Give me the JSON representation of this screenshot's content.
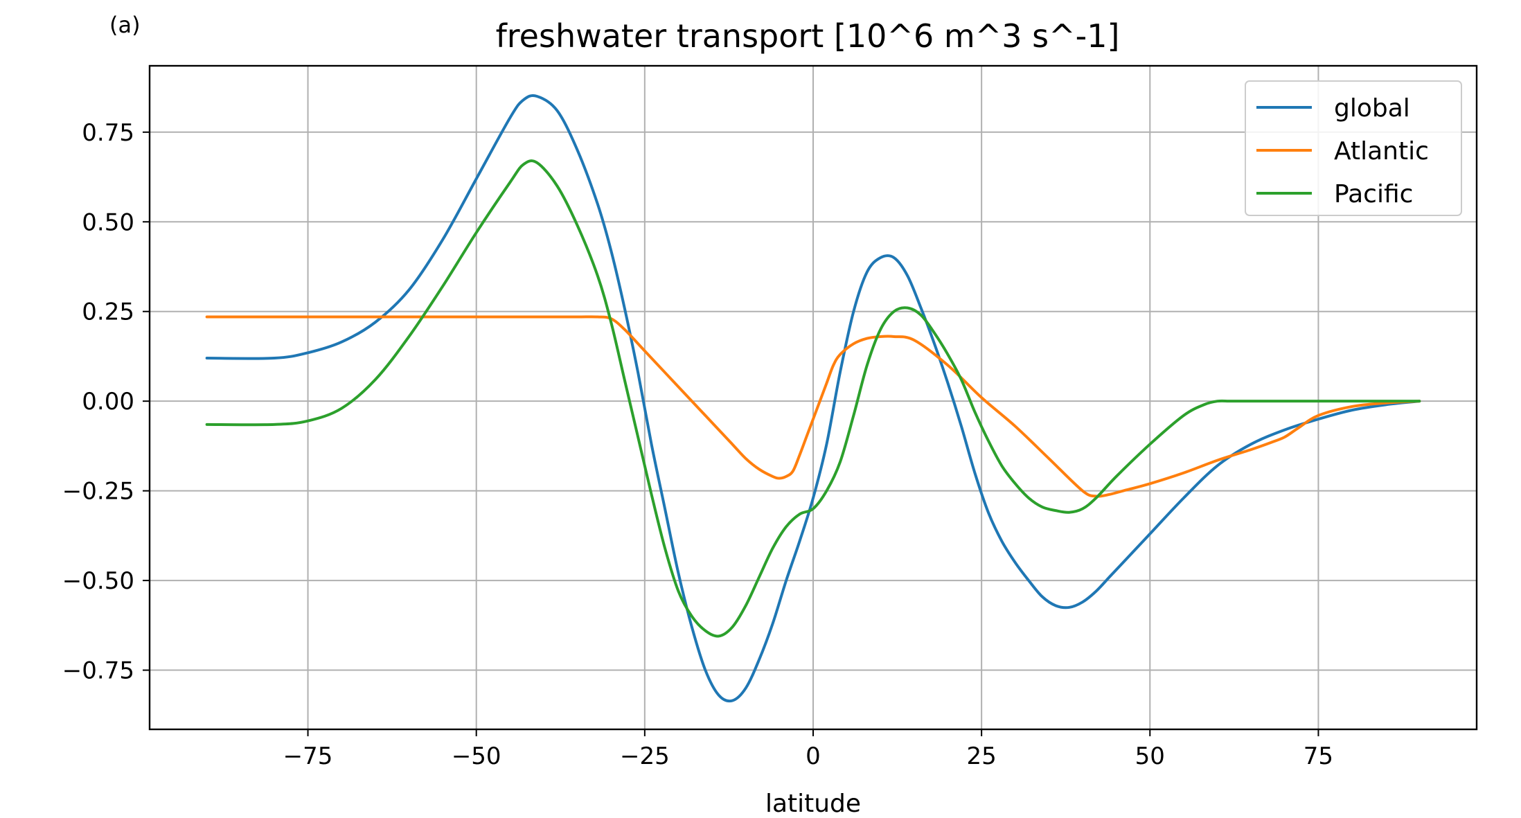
{
  "panel_label": "(a)",
  "chart_data": {
    "type": "line",
    "title": "freshwater transport [10^6 m^3 s^-1]",
    "xlabel": "latitude",
    "ylabel": "",
    "xlim": [
      -98.5,
      98.5
    ],
    "ylim": [
      -0.915,
      0.935
    ],
    "xticks": [
      -75,
      -50,
      -25,
      0,
      25,
      50,
      75
    ],
    "xtick_labels": [
      "−75",
      "−50",
      "−25",
      "0",
      "25",
      "50",
      "75"
    ],
    "yticks": [
      -0.75,
      -0.5,
      -0.25,
      0,
      0.25,
      0.5,
      0.75
    ],
    "ytick_labels": [
      "−0.75",
      "−0.50",
      "−0.25",
      "0.00",
      "0.25",
      "0.50",
      "0.75"
    ],
    "grid": true,
    "legend_position": "top-right",
    "series": [
      {
        "name": "global",
        "color": "#1f77b4",
        "x": [
          -90,
          -80,
          -75,
          -70,
          -65,
          -60,
          -55,
          -50,
          -45,
          -43,
          -41,
          -38,
          -35,
          -32,
          -30,
          -28,
          -26,
          -24,
          -22,
          -20,
          -18,
          -16,
          -14,
          -12,
          -10,
          -8,
          -6,
          -4,
          -2,
          0,
          2,
          4,
          6,
          8,
          10,
          12,
          14,
          16,
          18,
          20,
          22,
          24,
          26,
          28,
          30,
          32,
          34,
          36,
          38,
          40,
          42,
          44,
          46,
          48,
          50,
          55,
          60,
          65,
          70,
          75,
          80,
          85,
          90
        ],
        "y": [
          0.12,
          0.12,
          0.135,
          0.165,
          0.22,
          0.31,
          0.45,
          0.62,
          0.79,
          0.84,
          0.85,
          0.81,
          0.7,
          0.55,
          0.42,
          0.26,
          0.08,
          -0.12,
          -0.3,
          -0.48,
          -0.63,
          -0.75,
          -0.82,
          -0.835,
          -0.8,
          -0.72,
          -0.62,
          -0.5,
          -0.39,
          -0.27,
          -0.12,
          0.08,
          0.25,
          0.36,
          0.4,
          0.4,
          0.35,
          0.26,
          0.16,
          0.05,
          -0.07,
          -0.2,
          -0.31,
          -0.39,
          -0.45,
          -0.5,
          -0.545,
          -0.57,
          -0.575,
          -0.56,
          -0.53,
          -0.49,
          -0.45,
          -0.41,
          -0.37,
          -0.27,
          -0.18,
          -0.12,
          -0.08,
          -0.05,
          -0.025,
          -0.01,
          0.0
        ]
      },
      {
        "name": "Atlantic",
        "color": "#ff7f0e",
        "x": [
          -90,
          -80,
          -70,
          -60,
          -50,
          -40,
          -35,
          -32,
          -30,
          -28,
          -25,
          -20,
          -15,
          -12,
          -10,
          -8,
          -6,
          -5,
          -4,
          -3,
          -2,
          -1,
          0,
          1,
          2,
          3,
          4,
          6,
          8,
          10,
          12,
          15,
          20,
          25,
          30,
          35,
          40,
          42,
          44,
          46,
          50,
          55,
          60,
          65,
          68,
          70,
          72,
          75,
          80,
          85,
          90
        ],
        "y": [
          0.235,
          0.235,
          0.235,
          0.235,
          0.235,
          0.235,
          0.235,
          0.235,
          0.23,
          0.2,
          0.14,
          0.04,
          -0.06,
          -0.12,
          -0.16,
          -0.19,
          -0.21,
          -0.215,
          -0.21,
          -0.195,
          -0.15,
          -0.1,
          -0.05,
          0.0,
          0.05,
          0.1,
          0.13,
          0.16,
          0.175,
          0.18,
          0.18,
          0.17,
          0.1,
          0.01,
          -0.07,
          -0.16,
          -0.25,
          -0.265,
          -0.26,
          -0.25,
          -0.23,
          -0.2,
          -0.165,
          -0.135,
          -0.115,
          -0.1,
          -0.075,
          -0.04,
          -0.015,
          -0.005,
          0.0
        ]
      },
      {
        "name": "Pacific",
        "color": "#2ca02c",
        "x": [
          -90,
          -80,
          -75,
          -70,
          -65,
          -60,
          -55,
          -50,
          -45,
          -43,
          -41,
          -38,
          -35,
          -32,
          -30,
          -28,
          -26,
          -24,
          -22,
          -20,
          -18,
          -16,
          -14,
          -12,
          -10,
          -8,
          -6,
          -4,
          -2,
          0,
          2,
          4,
          6,
          8,
          10,
          12,
          14,
          16,
          18,
          20,
          22,
          24,
          26,
          28,
          30,
          32,
          34,
          36,
          38,
          40,
          42,
          45,
          50,
          55,
          58,
          60,
          62,
          65,
          70,
          75,
          80,
          85,
          90
        ],
        "y": [
          -0.065,
          -0.065,
          -0.055,
          -0.02,
          0.06,
          0.18,
          0.32,
          0.47,
          0.61,
          0.66,
          0.665,
          0.6,
          0.49,
          0.35,
          0.22,
          0.06,
          -0.1,
          -0.26,
          -0.41,
          -0.53,
          -0.6,
          -0.64,
          -0.655,
          -0.63,
          -0.57,
          -0.49,
          -0.41,
          -0.35,
          -0.315,
          -0.3,
          -0.25,
          -0.17,
          -0.04,
          0.1,
          0.2,
          0.25,
          0.26,
          0.24,
          0.19,
          0.13,
          0.06,
          -0.03,
          -0.11,
          -0.18,
          -0.23,
          -0.27,
          -0.295,
          -0.305,
          -0.31,
          -0.3,
          -0.27,
          -0.21,
          -0.12,
          -0.04,
          -0.01,
          0.0,
          0.0,
          0.0,
          0.0,
          0.0,
          0.0,
          0.0,
          0.0
        ]
      }
    ]
  }
}
